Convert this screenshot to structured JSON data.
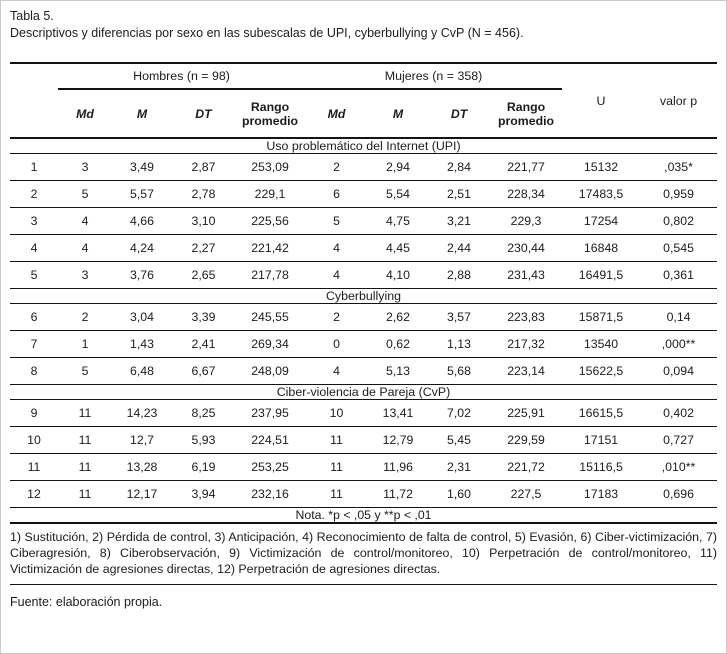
{
  "page": {
    "title": "Tabla 5.",
    "subtitle": "Descriptivos y diferencias por sexo en las subescalas de UPI, cyberbullying y CvP (N = 456).",
    "note": "Nota. *p < ,05 y **p < ,01",
    "footnote": "1) Sustitución, 2) Pérdida de control, 3) Anticipación, 4) Reconocimiento de falta de control, 5) Evasión, 6) Ciber-victimización, 7) Ciberagresión, 8) Ciberobservación, 9) Victimización de control/monitoreo, 10) Perpetración de control/monitoreo, 11) Victimización de agresiones directas, 12) Perpetración de agresiones directas.",
    "source": "Fuente: elaboración propia."
  },
  "table": {
    "group_headers": [
      {
        "label": "Hombres (n = 98)"
      },
      {
        "label": "Mujeres (n = 358)"
      }
    ],
    "stat_headers": [
      "Md",
      "M",
      "DT",
      "Rango promedio",
      "Md",
      "M",
      "DT",
      "Rango promedio"
    ],
    "test_headers": [
      "U",
      "valor p"
    ],
    "sections": [
      {
        "title": "Uso problemático del Internet (UPI)",
        "rows": [
          [
            "1",
            "3",
            "3,49",
            "2,87",
            "253,09",
            "2",
            "2,94",
            "2,84",
            "221,77",
            "15132",
            ",035*"
          ],
          [
            "2",
            "5",
            "5,57",
            "2,78",
            "229,1",
            "6",
            "5,54",
            "2,51",
            "228,34",
            "17483,5",
            "0,959"
          ],
          [
            "3",
            "4",
            "4,66",
            "3,10",
            "225,56",
            "5",
            "4,75",
            "3,21",
            "229,3",
            "17254",
            "0,802"
          ],
          [
            "4",
            "4",
            "4,24",
            "2,27",
            "221,42",
            "4",
            "4,45",
            "2,44",
            "230,44",
            "16848",
            "0,545"
          ],
          [
            "5",
            "3",
            "3,76",
            "2,65",
            "217,78",
            "4",
            "4,10",
            "2,88",
            "231,43",
            "16491,5",
            "0,361"
          ]
        ]
      },
      {
        "title": "Cyberbullying",
        "rows": [
          [
            "6",
            "2",
            "3,04",
            "3,39",
            "245,55",
            "2",
            "2,62",
            "3,57",
            "223,83",
            "15871,5",
            "0,14"
          ],
          [
            "7",
            "1",
            "1,43",
            "2,41",
            "269,34",
            "0",
            "0,62",
            "1,13",
            "217,32",
            "13540",
            ",000**"
          ],
          [
            "8",
            "5",
            "6,48",
            "6,67",
            "248,09",
            "4",
            "5,13",
            "5,68",
            "223,14",
            "15622,5",
            "0,094"
          ]
        ]
      },
      {
        "title": "Ciber-violencia de Pareja (CvP)",
        "rows": [
          [
            "9",
            "11",
            "14,23",
            "8,25",
            "237,95",
            "10",
            "13,41",
            "7,02",
            "225,91",
            "16615,5",
            "0,402"
          ],
          [
            "10",
            "11",
            "12,7",
            "5,93",
            "224,51",
            "11",
            "12,79",
            "5,45",
            "229,59",
            "17151",
            "0,727"
          ],
          [
            "11",
            "11",
            "13,28",
            "6,19",
            "253,25",
            "11",
            "11,96",
            "2,31",
            "221,72",
            "15116,5",
            ",010**"
          ],
          [
            "12",
            "11",
            "12,17",
            "3,94",
            "232,16",
            "11",
            "11,72",
            "1,60",
            "227,5",
            "17183",
            "0,696"
          ]
        ]
      }
    ]
  }
}
